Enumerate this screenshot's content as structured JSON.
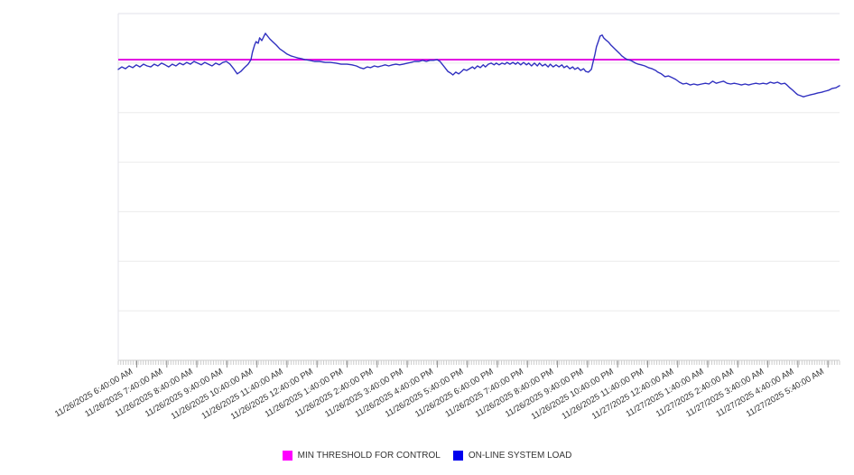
{
  "chart_data": {
    "type": "line",
    "title": "",
    "xlabel": "",
    "ylabel": "",
    "y_axis": {
      "labels_visible": false,
      "scale_note": "no numeric y-axis labels shown; values normalized 0-100 of plot height",
      "ylim": [
        0,
        100
      ],
      "gridline_divisions": 7,
      "grid": true
    },
    "x_axis": {
      "tick_labels": [
        "11/26/2025 6:40:00 AM",
        "11/26/2025 7:40:00 AM",
        "11/26/2025 8:40:00 AM",
        "11/26/2025 9:40:00 AM",
        "11/26/2025 10:40:00 AM",
        "11/26/2025 11:40:00 AM",
        "11/26/2025 12:40:00 PM",
        "11/26/2025 1:40:00 PM",
        "11/26/2025 2:40:00 PM",
        "11/26/2025 3:40:00 PM",
        "11/26/2025 4:40:00 PM",
        "11/26/2025 5:40:00 PM",
        "11/26/2025 6:40:00 PM",
        "11/26/2025 7:40:00 PM",
        "11/26/2025 8:40:00 PM",
        "11/26/2025 9:40:00 PM",
        "11/26/2025 10:40:00 PM",
        "11/26/2025 11:40:00 PM",
        "11/27/2025 12:40:00 AM",
        "11/27/2025 1:40:00 AM",
        "11/27/2025 2:40:00 AM",
        "11/27/2025 3:40:00 AM",
        "11/27/2025 4:40:00 AM",
        "11/27/2025 5:40:00 AM"
      ],
      "label_rotation_deg": -30,
      "minor_ticks_per_hour": 12
    },
    "series": [
      {
        "name": "MIN THRESHOLD FOR CONTROL",
        "type": "constant",
        "color": "#e000e0",
        "value": 86.7
      },
      {
        "name": "ON-LINE SYSTEM LOAD",
        "type": "polyline",
        "color": "#3030c0",
        "points": [
          [
            0,
            83.9
          ],
          [
            0.5,
            84.6
          ],
          [
            1,
            84.1
          ],
          [
            1.5,
            84.9
          ],
          [
            2,
            84.4
          ],
          [
            2.5,
            85.2
          ],
          [
            3,
            84.6
          ],
          [
            3.5,
            85.4
          ],
          [
            4,
            84.9
          ],
          [
            4.5,
            84.6
          ],
          [
            5,
            85.4
          ],
          [
            5.5,
            84.9
          ],
          [
            6,
            85.7
          ],
          [
            6.5,
            85.2
          ],
          [
            7,
            84.6
          ],
          [
            7.5,
            85.4
          ],
          [
            8,
            84.9
          ],
          [
            8.5,
            85.7
          ],
          [
            9,
            85.2
          ],
          [
            9.5,
            85.9
          ],
          [
            10,
            85.4
          ],
          [
            10.5,
            86.2
          ],
          [
            11,
            85.7
          ],
          [
            11.5,
            85.2
          ],
          [
            12,
            85.9
          ],
          [
            12.5,
            85.4
          ],
          [
            13,
            84.9
          ],
          [
            13.5,
            85.7
          ],
          [
            14,
            85.2
          ],
          [
            14.5,
            85.9
          ],
          [
            15,
            86.2
          ],
          [
            15.5,
            85.4
          ],
          [
            16,
            84.1
          ],
          [
            16.5,
            82.6
          ],
          [
            17,
            83.3
          ],
          [
            17.5,
            84.4
          ],
          [
            18,
            85.4
          ],
          [
            18.4,
            86.7
          ],
          [
            18.6,
            88.8
          ],
          [
            18.9,
            90.9
          ],
          [
            19.1,
            91.9
          ],
          [
            19.4,
            91.4
          ],
          [
            19.6,
            93
          ],
          [
            19.9,
            92.2
          ],
          [
            20.2,
            93.5
          ],
          [
            20.4,
            94.3
          ],
          [
            20.7,
            93.5
          ],
          [
            21,
            92.7
          ],
          [
            21.4,
            91.9
          ],
          [
            21.9,
            90.9
          ],
          [
            22.4,
            89.8
          ],
          [
            22.9,
            89.1
          ],
          [
            23.4,
            88.3
          ],
          [
            23.9,
            87.8
          ],
          [
            24.4,
            87.5
          ],
          [
            24.9,
            87.2
          ],
          [
            25.4,
            87
          ],
          [
            25.9,
            86.7
          ],
          [
            26.5,
            86.5
          ],
          [
            27.2,
            86.2
          ],
          [
            27.9,
            86.2
          ],
          [
            28.7,
            85.9
          ],
          [
            29.4,
            85.9
          ],
          [
            30.2,
            85.7
          ],
          [
            30.9,
            85.4
          ],
          [
            31.7,
            85.4
          ],
          [
            32.4,
            85.2
          ],
          [
            33,
            84.9
          ],
          [
            33.5,
            84.4
          ],
          [
            34,
            84.1
          ],
          [
            34.5,
            84.6
          ],
          [
            35,
            84.4
          ],
          [
            35.5,
            84.9
          ],
          [
            36,
            84.6
          ],
          [
            36.5,
            84.9
          ],
          [
            37,
            85.2
          ],
          [
            37.5,
            84.9
          ],
          [
            38,
            85.2
          ],
          [
            38.5,
            85.4
          ],
          [
            39,
            85.2
          ],
          [
            39.5,
            85.4
          ],
          [
            40.1,
            85.7
          ],
          [
            40.6,
            85.9
          ],
          [
            41.1,
            86.2
          ],
          [
            41.7,
            86.2
          ],
          [
            42.2,
            86.5
          ],
          [
            42.7,
            86.2
          ],
          [
            43.2,
            86.5
          ],
          [
            43.7,
            86.5
          ],
          [
            44.2,
            86.7
          ],
          [
            44.6,
            86.2
          ],
          [
            44.9,
            85.4
          ],
          [
            45.3,
            84.4
          ],
          [
            45.7,
            83.3
          ],
          [
            46.1,
            82.8
          ],
          [
            46.4,
            82.3
          ],
          [
            46.8,
            83.1
          ],
          [
            47.2,
            82.6
          ],
          [
            47.6,
            83.3
          ],
          [
            47.9,
            83.9
          ],
          [
            48.3,
            83.6
          ],
          [
            48.7,
            84.1
          ],
          [
            49.1,
            84.6
          ],
          [
            49.4,
            84.1
          ],
          [
            49.8,
            84.9
          ],
          [
            50.2,
            84.4
          ],
          [
            50.6,
            85.2
          ],
          [
            50.9,
            84.6
          ],
          [
            51.3,
            85.4
          ],
          [
            51.7,
            85.7
          ],
          [
            52.1,
            85.2
          ],
          [
            52.4,
            85.7
          ],
          [
            52.8,
            85.2
          ],
          [
            53.2,
            85.7
          ],
          [
            53.6,
            85.4
          ],
          [
            53.9,
            85.9
          ],
          [
            54.3,
            85.4
          ],
          [
            54.7,
            85.9
          ],
          [
            55.1,
            85.4
          ],
          [
            55.4,
            85.9
          ],
          [
            55.8,
            85.2
          ],
          [
            56.2,
            85.9
          ],
          [
            56.6,
            85.2
          ],
          [
            56.9,
            85.7
          ],
          [
            57.3,
            84.9
          ],
          [
            57.7,
            85.7
          ],
          [
            58.1,
            84.9
          ],
          [
            58.4,
            85.7
          ],
          [
            58.8,
            84.9
          ],
          [
            59.2,
            85.4
          ],
          [
            59.6,
            84.6
          ],
          [
            59.9,
            85.4
          ],
          [
            60.3,
            84.6
          ],
          [
            60.7,
            85.2
          ],
          [
            61.1,
            84.6
          ],
          [
            61.5,
            85.2
          ],
          [
            61.8,
            84.4
          ],
          [
            62.2,
            84.9
          ],
          [
            62.6,
            84.1
          ],
          [
            63,
            84.6
          ],
          [
            63.3,
            83.9
          ],
          [
            63.7,
            84.4
          ],
          [
            64.1,
            83.6
          ],
          [
            64.5,
            84.1
          ],
          [
            64.8,
            83.3
          ],
          [
            65.2,
            83.1
          ],
          [
            65.6,
            83.9
          ],
          [
            65.8,
            85.7
          ],
          [
            66.1,
            88.3
          ],
          [
            66.3,
            90.4
          ],
          [
            66.6,
            92.2
          ],
          [
            66.8,
            93.5
          ],
          [
            67.1,
            93.8
          ],
          [
            67.3,
            93
          ],
          [
            67.6,
            92.4
          ],
          [
            68,
            91.7
          ],
          [
            68.3,
            90.9
          ],
          [
            68.7,
            90.1
          ],
          [
            69.1,
            89.3
          ],
          [
            69.5,
            88.5
          ],
          [
            69.8,
            87.8
          ],
          [
            70.2,
            87.2
          ],
          [
            70.6,
            86.7
          ],
          [
            71,
            86.5
          ],
          [
            71.3,
            86.2
          ],
          [
            71.7,
            85.7
          ],
          [
            72.1,
            85.4
          ],
          [
            72.5,
            85.2
          ],
          [
            73,
            84.9
          ],
          [
            73.5,
            84.4
          ],
          [
            74,
            84.1
          ],
          [
            74.5,
            83.6
          ],
          [
            74.8,
            83.1
          ],
          [
            75.3,
            82.6
          ],
          [
            75.8,
            81.8
          ],
          [
            76.3,
            82
          ],
          [
            76.8,
            81.5
          ],
          [
            77.3,
            81
          ],
          [
            77.8,
            80.2
          ],
          [
            78.3,
            79.7
          ],
          [
            78.8,
            79.9
          ],
          [
            79.3,
            79.4
          ],
          [
            79.8,
            79.7
          ],
          [
            80.3,
            79.4
          ],
          [
            80.9,
            79.7
          ],
          [
            81.4,
            79.9
          ],
          [
            81.9,
            79.7
          ],
          [
            82.4,
            80.5
          ],
          [
            82.9,
            79.9
          ],
          [
            83.4,
            80.2
          ],
          [
            83.9,
            80.5
          ],
          [
            84.4,
            79.9
          ],
          [
            84.9,
            79.7
          ],
          [
            85.4,
            79.9
          ],
          [
            85.9,
            79.7
          ],
          [
            86.4,
            79.4
          ],
          [
            86.9,
            79.7
          ],
          [
            87.4,
            79.4
          ],
          [
            87.9,
            79.7
          ],
          [
            88.4,
            79.9
          ],
          [
            88.9,
            79.7
          ],
          [
            89.4,
            79.9
          ],
          [
            89.9,
            79.7
          ],
          [
            90.4,
            80.2
          ],
          [
            90.9,
            79.9
          ],
          [
            91.4,
            80.2
          ],
          [
            91.9,
            79.7
          ],
          [
            92.4,
            79.9
          ],
          [
            92.7,
            79.4
          ],
          [
            93.1,
            78.6
          ],
          [
            93.5,
            77.9
          ],
          [
            93.9,
            77.1
          ],
          [
            94.2,
            76.6
          ],
          [
            94.6,
            76.3
          ],
          [
            95,
            76
          ],
          [
            95.5,
            76.3
          ],
          [
            96,
            76.6
          ],
          [
            96.5,
            76.8
          ],
          [
            97,
            77.1
          ],
          [
            97.5,
            77.3
          ],
          [
            98,
            77.6
          ],
          [
            98.5,
            77.9
          ],
          [
            99,
            78.4
          ],
          [
            99.5,
            78.6
          ],
          [
            100,
            79.2
          ]
        ]
      }
    ],
    "legend": {
      "position": "bottom-center",
      "entries": [
        {
          "label": "MIN THRESHOLD FOR CONTROL",
          "swatch_color": "#ff00ff"
        },
        {
          "label": "ON-LINE SYSTEM LOAD",
          "swatch_color": "#0000ee"
        }
      ]
    },
    "style_colors": {
      "gridline": "#ebebeb",
      "plot_border": "#e2e2e8",
      "axis_line": "#cccccc",
      "minor_tick": "#cccccc",
      "major_tick": "#909090",
      "label_text": "#333333"
    }
  }
}
